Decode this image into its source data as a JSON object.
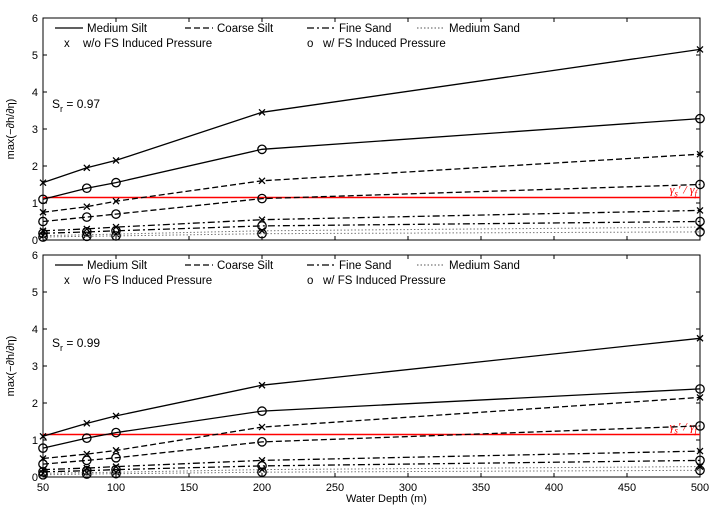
{
  "chart_data": [
    {
      "type": "line",
      "annotation": "S_r = 0.97",
      "annotation_base": "S",
      "annotation_sub": "r",
      "annotation_value": " = 0.97",
      "ratio_label_base": "γ",
      "ratio_label_sub1": "s",
      "ratio_label_mid": "' / γ",
      "ratio_label_sub2": "f",
      "ratio_value": 1.15,
      "ratio_color": "#ff0000",
      "xlabel": "",
      "ylabel": "max(−∂h/∂η)",
      "xlim": [
        50,
        500
      ],
      "ylim": [
        0,
        6
      ],
      "xticks": [
        "50",
        "100",
        "150",
        "200",
        "250",
        "300",
        "350",
        "400",
        "450",
        "500"
      ],
      "yticks": [
        "0",
        "1",
        "2",
        "3",
        "4",
        "5",
        "6"
      ],
      "x": [
        50,
        80,
        100,
        200,
        500
      ],
      "legend_line1": [
        "Medium Silt",
        "Coarse Silt",
        "Fine Sand",
        "Medium Sand"
      ],
      "legend_line2": [
        "w/o FS Induced Pressure",
        "w/ FS Induced Pressure"
      ],
      "marker_x": "x",
      "marker_o": "o",
      "series": [
        {
          "name": "Medium Silt",
          "pressure": "w/o FS Induced Pressure",
          "marker": "x",
          "style": "solid",
          "values": [
            1.55,
            1.95,
            2.15,
            3.45,
            5.15
          ]
        },
        {
          "name": "Medium Silt",
          "pressure": "w/ FS Induced Pressure",
          "marker": "o",
          "style": "solid",
          "values": [
            1.1,
            1.4,
            1.55,
            2.45,
            3.28
          ]
        },
        {
          "name": "Coarse Silt",
          "pressure": "w/o FS Induced Pressure",
          "marker": "x",
          "style": "dashed",
          "values": [
            0.75,
            0.9,
            1.05,
            1.6,
            2.32
          ]
        },
        {
          "name": "Coarse Silt",
          "pressure": "w/ FS Induced Pressure",
          "marker": "o",
          "style": "dashed",
          "values": [
            0.5,
            0.62,
            0.7,
            1.12,
            1.5
          ]
        },
        {
          "name": "Fine Sand",
          "pressure": "w/o FS Induced Pressure",
          "marker": "x",
          "style": "dashdot",
          "values": [
            0.25,
            0.3,
            0.35,
            0.55,
            0.8
          ]
        },
        {
          "name": "Fine Sand",
          "pressure": "w/ FS Induced Pressure",
          "marker": "o",
          "style": "dashdot",
          "values": [
            0.18,
            0.22,
            0.25,
            0.38,
            0.5
          ]
        },
        {
          "name": "Medium Sand",
          "pressure": "w/o FS Induced Pressure",
          "marker": "x",
          "style": "dotted",
          "values": [
            0.12,
            0.14,
            0.16,
            0.25,
            0.35
          ]
        },
        {
          "name": "Medium Sand",
          "pressure": "w/ FS Induced Pressure",
          "marker": "o",
          "style": "dotted",
          "values": [
            0.08,
            0.1,
            0.11,
            0.17,
            0.22
          ]
        }
      ]
    },
    {
      "type": "line",
      "annotation": "S_r = 0.99",
      "annotation_base": "S",
      "annotation_sub": "r",
      "annotation_value": " = 0.99",
      "ratio_label_base": "γ",
      "ratio_label_sub1": "s",
      "ratio_label_mid": "' / γ",
      "ratio_label_sub2": "f",
      "ratio_value": 1.15,
      "ratio_color": "#ff0000",
      "xlabel": "Water Depth (m)",
      "ylabel": "max(−∂h/∂η)",
      "xlim": [
        50,
        500
      ],
      "ylim": [
        0,
        6
      ],
      "xticks": [
        "50",
        "100",
        "150",
        "200",
        "250",
        "300",
        "350",
        "400",
        "450",
        "500"
      ],
      "yticks": [
        "0",
        "1",
        "2",
        "3",
        "4",
        "5",
        "6"
      ],
      "x": [
        50,
        80,
        100,
        200,
        500
      ],
      "legend_line1": [
        "Medium Silt",
        "Coarse Silt",
        "Fine Sand",
        "Medium Sand"
      ],
      "legend_line2": [
        "w/o FS Induced Pressure",
        "w/ FS Induced Pressure"
      ],
      "marker_x": "x",
      "marker_o": "o",
      "series": [
        {
          "name": "Medium Silt",
          "pressure": "w/o FS Induced Pressure",
          "marker": "x",
          "style": "solid",
          "values": [
            1.1,
            1.45,
            1.65,
            2.48,
            3.75
          ]
        },
        {
          "name": "Medium Silt",
          "pressure": "w/ FS Induced Pressure",
          "marker": "o",
          "style": "solid",
          "values": [
            0.78,
            1.05,
            1.2,
            1.78,
            2.38
          ]
        },
        {
          "name": "Coarse Silt",
          "pressure": "w/o FS Induced Pressure",
          "marker": "x",
          "style": "dashed",
          "values": [
            0.5,
            0.62,
            0.72,
            1.35,
            2.15
          ]
        },
        {
          "name": "Coarse Silt",
          "pressure": "w/ FS Induced Pressure",
          "marker": "o",
          "style": "dashed",
          "values": [
            0.35,
            0.45,
            0.52,
            0.95,
            1.38
          ]
        },
        {
          "name": "Fine Sand",
          "pressure": "w/o FS Induced Pressure",
          "marker": "x",
          "style": "dashdot",
          "values": [
            0.2,
            0.24,
            0.28,
            0.45,
            0.7
          ]
        },
        {
          "name": "Fine Sand",
          "pressure": "w/ FS Induced Pressure",
          "marker": "o",
          "style": "dashdot",
          "values": [
            0.14,
            0.17,
            0.2,
            0.3,
            0.45
          ]
        },
        {
          "name": "Medium Sand",
          "pressure": "w/o FS Induced Pressure",
          "marker": "x",
          "style": "dotted",
          "values": [
            0.1,
            0.12,
            0.13,
            0.2,
            0.28
          ]
        },
        {
          "name": "Medium Sand",
          "pressure": "w/ FS Induced Pressure",
          "marker": "o",
          "style": "dotted",
          "values": [
            0.06,
            0.08,
            0.09,
            0.13,
            0.18
          ]
        }
      ]
    }
  ]
}
